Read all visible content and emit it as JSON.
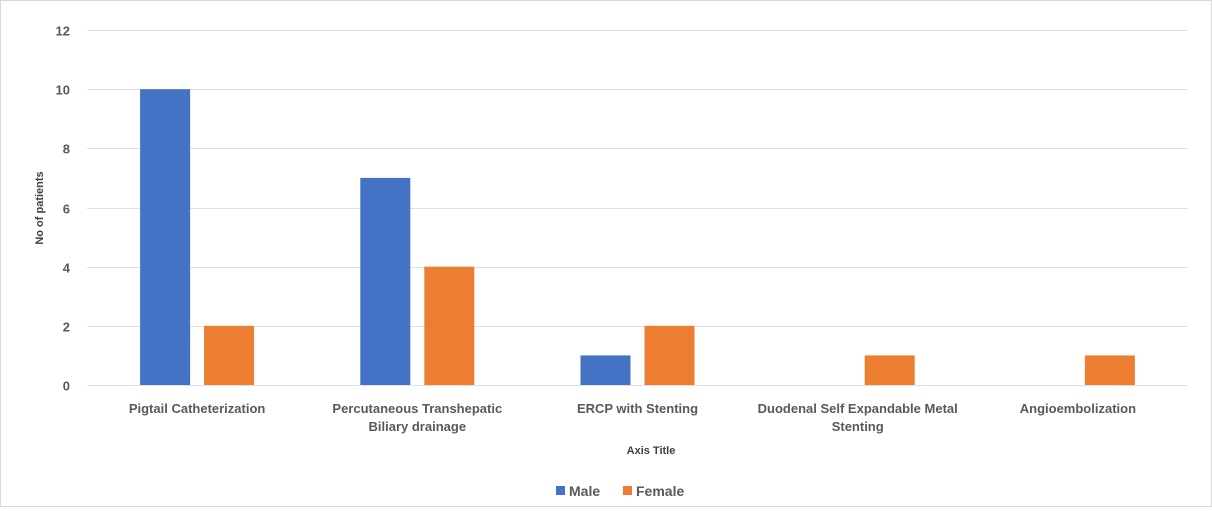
{
  "chart_data": {
    "type": "bar",
    "categories": [
      [
        "Pigtail Catheterization"
      ],
      [
        "Percutaneous Transhepatic",
        "Biliary drainage"
      ],
      [
        "ERCP with Stenting"
      ],
      [
        "Duodenal Self Expandable Metal",
        "Stenting"
      ],
      [
        "Angioembolization"
      ]
    ],
    "series": [
      {
        "name": "Male",
        "color": "#4472c4",
        "values": [
          10,
          7,
          1,
          0,
          0
        ]
      },
      {
        "name": "Female",
        "color": "#ed7d31",
        "values": [
          2,
          4,
          2,
          1,
          1
        ]
      }
    ],
    "xlabel": "Axis Title",
    "ylabel": "No of patients",
    "ylim": [
      0,
      12
    ],
    "yticks": [
      0,
      2,
      4,
      6,
      8,
      10,
      12
    ],
    "grid": true,
    "legend_position": "bottom"
  }
}
